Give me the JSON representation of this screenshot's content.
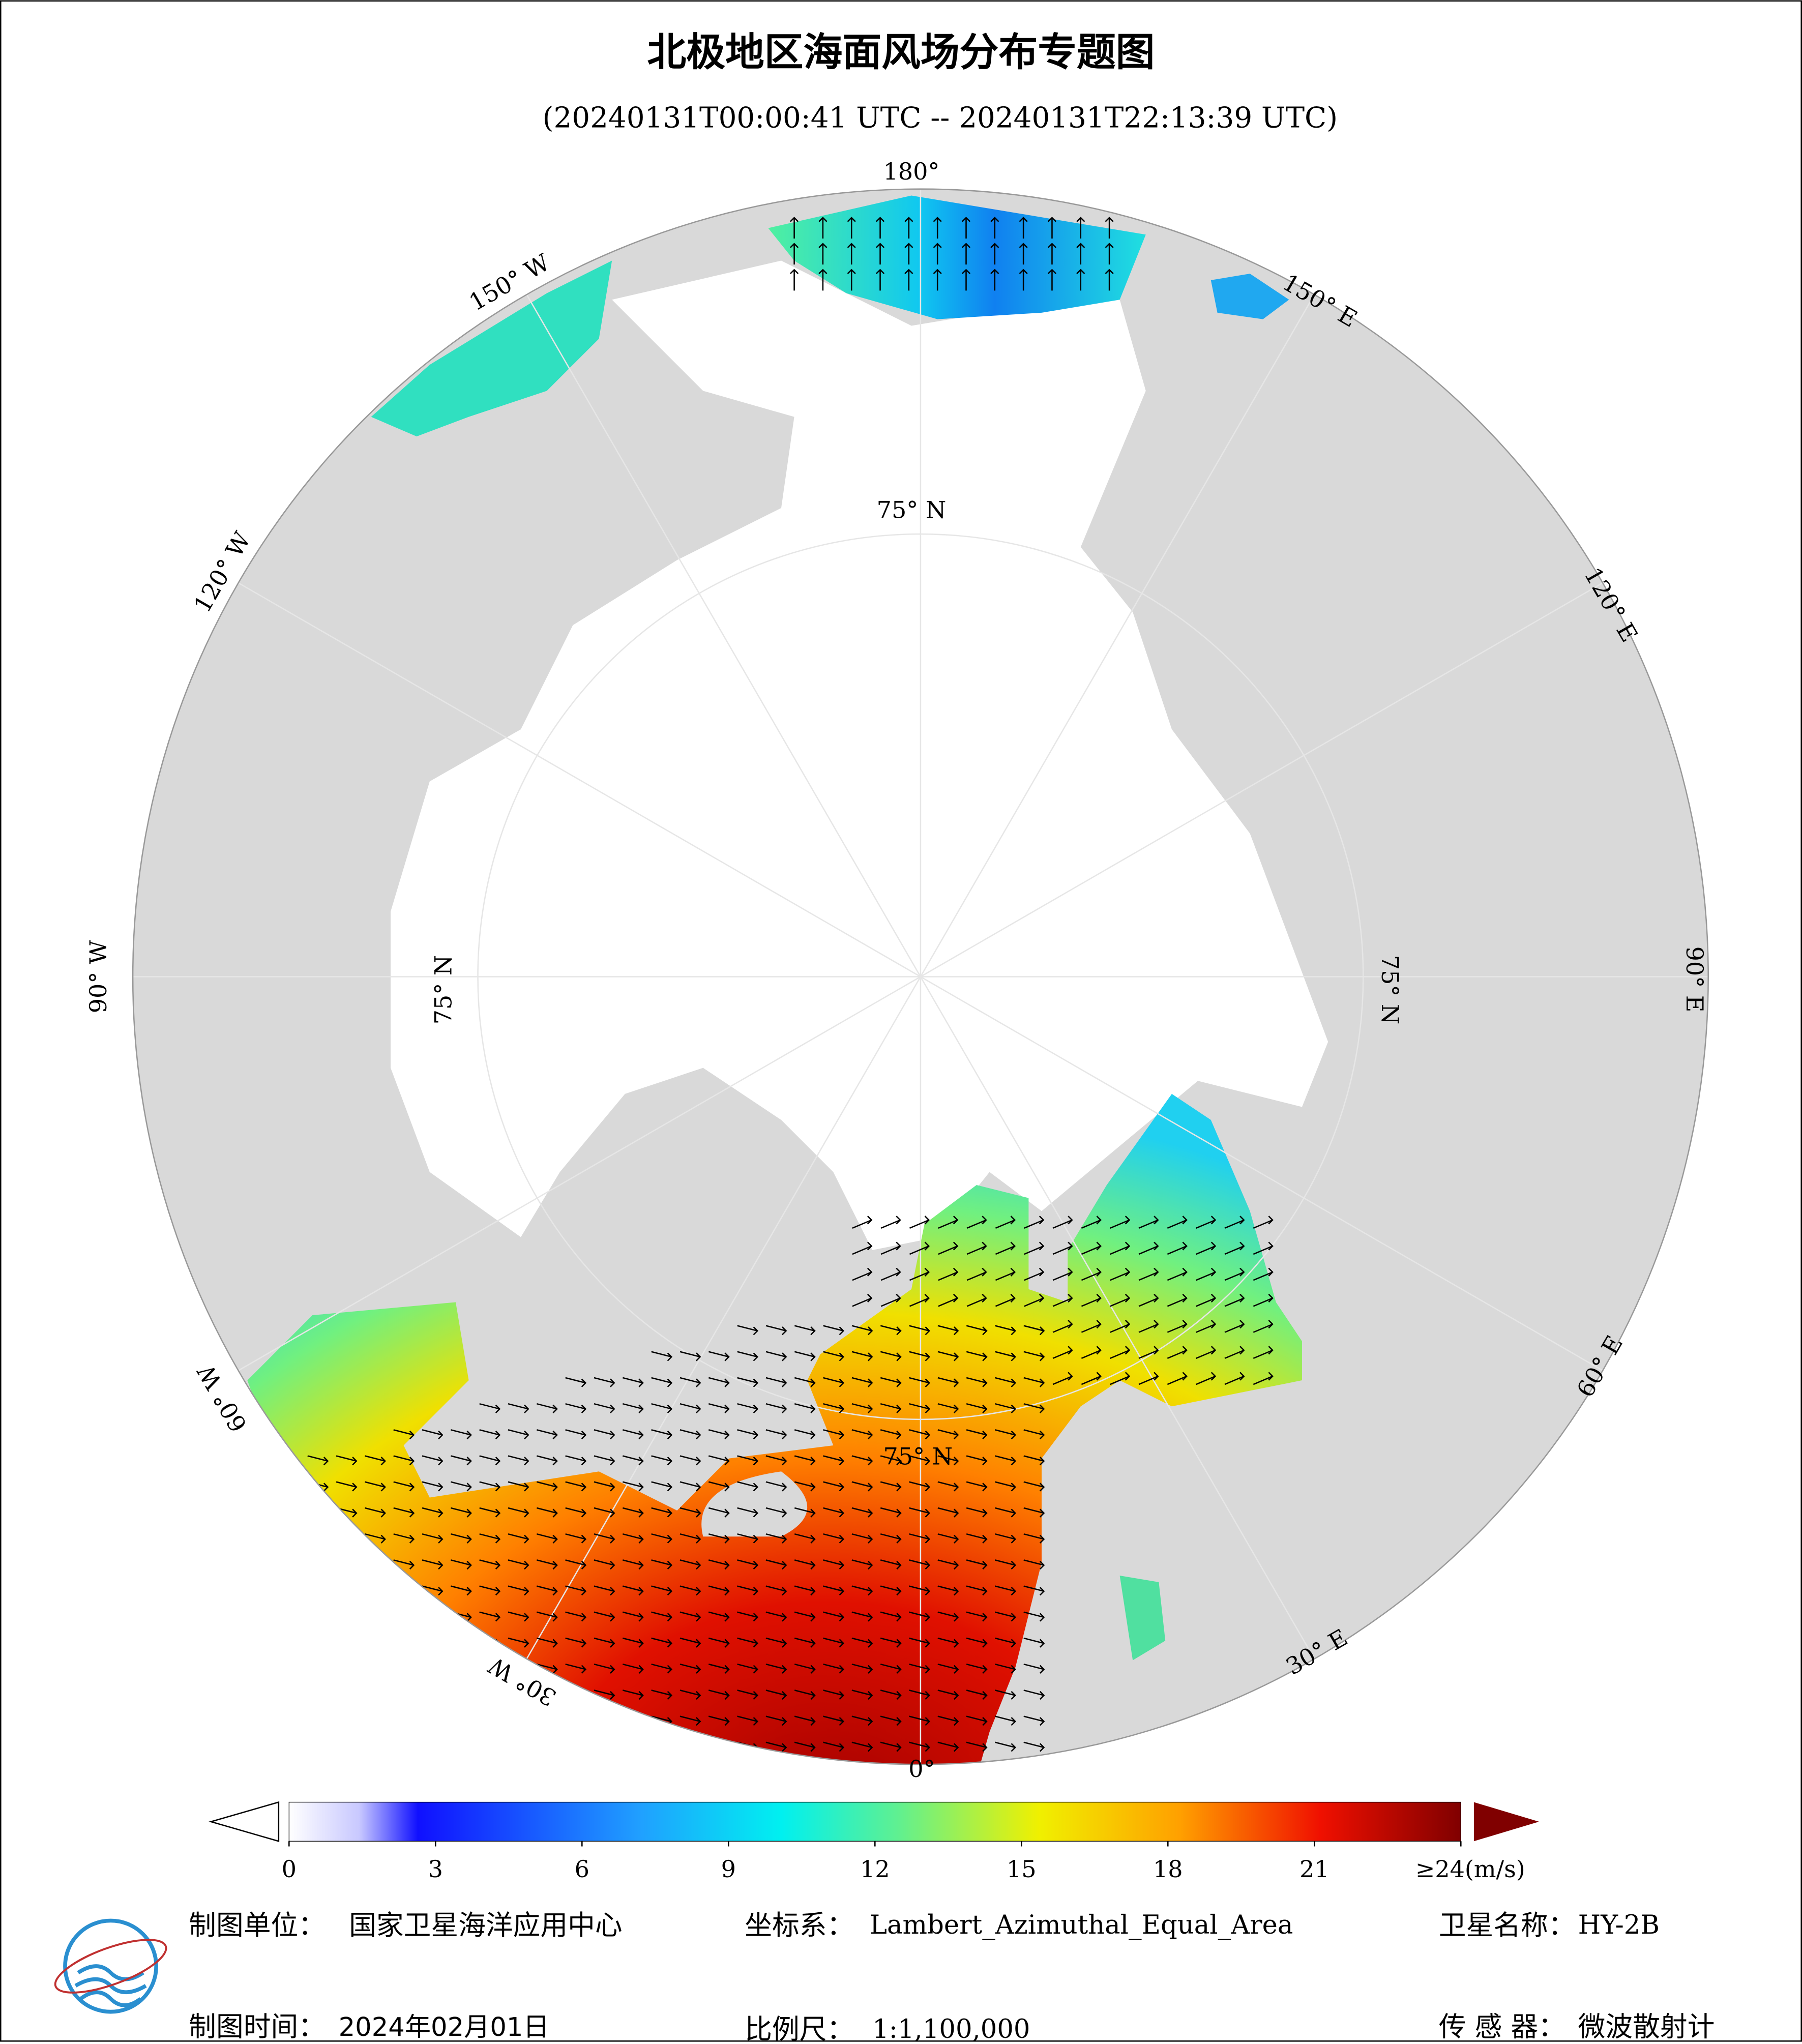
{
  "header": {
    "title": "北极地区海面风场分布专题图",
    "subtitle": "(20240131T00:00:41 UTC -- 20240131T22:13:39 UTC)"
  },
  "map": {
    "graticule_labels": [
      "180°",
      "150° E",
      "120° E",
      "90° E",
      "60° E",
      "30° E",
      "0°",
      "30° W",
      "60° W",
      "90° W",
      "120° W",
      "150° W"
    ],
    "latitude_labels": [
      "75° N",
      "75° N",
      "75° N",
      "75° N"
    ]
  },
  "colorbar": {
    "lim": [
      0,
      24
    ],
    "ticks": [
      0,
      3,
      6,
      9,
      12,
      15,
      18,
      21,
      {
        "value": 24,
        "label": "≥24(m/s)"
      }
    ]
  },
  "footer": {
    "unit_label": "制图单位：",
    "unit": "国家卫星海洋应用中心",
    "crs_label": "坐标系：",
    "crs": "Lambert_Azimuthal_Equal_Area",
    "satellite_label": "卫星名称：",
    "satellite": "HY-2B",
    "date_label": "制图时间：",
    "date": "2024年02月01日",
    "scale_label": "比例尺：",
    "scale": "1:1,100,000",
    "sensor_label": "传 感 器：",
    "sensor": "微波散射计"
  }
}
